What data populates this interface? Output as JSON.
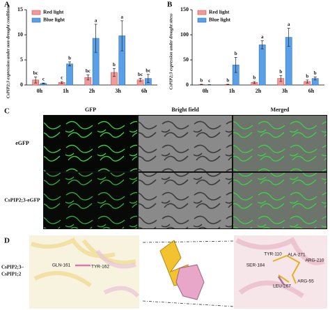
{
  "panels": {
    "a": "A",
    "b": "B",
    "c": "C",
    "d": "D"
  },
  "chart_data": [
    {
      "type": "bar",
      "ylabel": "CsPIP2;3 expression under non-drought conditions",
      "categories": [
        "0h",
        "1h",
        "2h",
        "3h",
        "6h"
      ],
      "ylim": [
        0,
        15
      ],
      "yticks": [
        0,
        5,
        10,
        15
      ],
      "legend": "top-left",
      "series": [
        {
          "name": "Red light",
          "color": "#f29a9a",
          "values": [
            1.0,
            0.5,
            1.5,
            2.5,
            1.0
          ],
          "errors": [
            0.6,
            0.2,
            0.5,
            0.8,
            0.3
          ],
          "letters": [
            "bc",
            "c",
            "bc",
            "b",
            "bc"
          ]
        },
        {
          "name": "Blue  light",
          "color": "#5aa0e6",
          "values": [
            0.3,
            4.2,
            9.3,
            9.8,
            1.3
          ],
          "errors": [
            0.1,
            0.4,
            2.8,
            3.0,
            0.8
          ],
          "letters": [
            "c",
            "b",
            "a",
            "a",
            "bc"
          ]
        }
      ]
    },
    {
      "type": "bar",
      "ylabel": "CsPIP2;3 expression under drought stress",
      "categories": [
        "0h",
        "1h",
        "2h",
        "3h",
        "6h"
      ],
      "ylim": [
        0,
        150
      ],
      "yticks": [
        0,
        50,
        100,
        150
      ],
      "legend": "top-left",
      "series": [
        {
          "name": "Red light",
          "color": "#f29a9a",
          "values": [
            1,
            1,
            5,
            13,
            7
          ],
          "errors": [
            0.5,
            0.5,
            2,
            6,
            3
          ],
          "letters": [
            "b",
            "b",
            "b",
            "b",
            "b"
          ]
        },
        {
          "name": "Blue light",
          "color": "#5aa0e6",
          "values": [
            0.5,
            40,
            80,
            95,
            13
          ],
          "errors": [
            0.3,
            15,
            8,
            18,
            3
          ],
          "letters": [
            "c",
            "b",
            "a",
            "a",
            "b"
          ]
        }
      ]
    }
  ],
  "microscopy": {
    "columns": [
      "GFP",
      "Bright field",
      "Merged"
    ],
    "rows": [
      "eGFP",
      "CsPIP2;3-eGFP"
    ]
  },
  "structure": {
    "complex": [
      "CsPIP2;3–",
      "CsPIP1;2"
    ],
    "left_residues": [
      "GLN-161",
      "TYR-162"
    ],
    "right_residues": [
      "TYR-110",
      "ALA-271",
      "SER-184",
      "ARG-210",
      "LEU-267",
      "ARG-55"
    ]
  }
}
